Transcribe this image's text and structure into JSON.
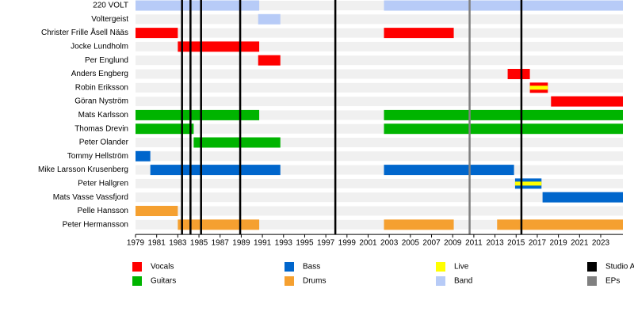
{
  "chart_data": {
    "type": "timeline",
    "xlim": [
      1979,
      2025.1
    ],
    "xticks": [
      1979,
      1981,
      1983,
      1985,
      1987,
      1989,
      1991,
      1993,
      1995,
      1997,
      1999,
      2001,
      2003,
      2005,
      2007,
      2009,
      2011,
      2013,
      2015,
      2017,
      2019,
      2021,
      2023
    ],
    "series": [
      {
        "name": "Vocals",
        "color": "#ff0000"
      },
      {
        "name": "Guitars",
        "color": "#00b400"
      },
      {
        "name": "Bass",
        "color": "#0066cc"
      },
      {
        "name": "Drums",
        "color": "#f5a030"
      },
      {
        "name": "Live",
        "color": "#ffff00"
      },
      {
        "name": "Band",
        "color": "#b7cbf7"
      },
      {
        "name": "Studio Albums",
        "color": "#000000"
      },
      {
        "name": "EPs",
        "color": "#808080"
      }
    ],
    "rows": [
      {
        "name": "220 VOLT",
        "bars": [
          {
            "role": "Band",
            "start": 1979,
            "end": 1990.7
          },
          {
            "role": "Band",
            "start": 2002.5,
            "end": 2025.1
          }
        ]
      },
      {
        "name": "Voltergeist",
        "bars": [
          {
            "role": "Band",
            "start": 1990.6,
            "end": 1992.7
          }
        ]
      },
      {
        "name": "Christer Frille Åsell Nääs",
        "bars": [
          {
            "role": "Vocals",
            "start": 1979,
            "end": 1983
          },
          {
            "role": "Vocals",
            "start": 2002.5,
            "end": 2009.1
          }
        ]
      },
      {
        "name": "Jocke Lundholm",
        "bars": [
          {
            "role": "Vocals",
            "start": 1983,
            "end": 1990.7
          }
        ]
      },
      {
        "name": "Per Englund",
        "bars": [
          {
            "role": "Vocals",
            "start": 1990.6,
            "end": 1992.7
          }
        ]
      },
      {
        "name": "Anders Engberg",
        "bars": [
          {
            "role": "Vocals",
            "start": 2014.2,
            "end": 2016.3
          }
        ]
      },
      {
        "name": "Robin Eriksson",
        "bars": [
          {
            "role": "Vocals",
            "overlay": "Live",
            "start": 2016.3,
            "end": 2018
          }
        ]
      },
      {
        "name": "Göran Nyström",
        "bars": [
          {
            "role": "Vocals",
            "start": 2018.3,
            "end": 2025.1
          }
        ]
      },
      {
        "name": "Mats Karlsson",
        "bars": [
          {
            "role": "Guitars",
            "start": 1979,
            "end": 1990.7
          },
          {
            "role": "Guitars",
            "start": 2002.5,
            "end": 2025.1
          }
        ]
      },
      {
        "name": "Thomas Drevin",
        "bars": [
          {
            "role": "Guitars",
            "start": 1979,
            "end": 1984.5
          },
          {
            "role": "Guitars",
            "start": 2002.5,
            "end": 2025.1
          }
        ]
      },
      {
        "name": "Peter Olander",
        "bars": [
          {
            "role": "Guitars",
            "start": 1984.5,
            "end": 1992.7
          }
        ]
      },
      {
        "name": "Tommy Hellström",
        "bars": [
          {
            "role": "Bass",
            "start": 1979,
            "end": 1980.4
          }
        ]
      },
      {
        "name": "Mike Larsson Krusenberg",
        "bars": [
          {
            "role": "Bass",
            "start": 1980.4,
            "end": 1992.7
          },
          {
            "role": "Bass",
            "start": 2002.5,
            "end": 2014.8
          }
        ]
      },
      {
        "name": "Peter Hallgren",
        "bars": [
          {
            "role": "Bass",
            "overlay": "Live",
            "start": 2014.9,
            "end": 2017.4
          }
        ]
      },
      {
        "name": "Mats Vasse Vassfjord",
        "bars": [
          {
            "role": "Bass",
            "start": 2017.5,
            "end": 2025.1
          }
        ]
      },
      {
        "name": "Pelle Hansson",
        "bars": [
          {
            "role": "Drums",
            "start": 1979,
            "end": 1983
          }
        ]
      },
      {
        "name": "Peter Hermansson",
        "bars": [
          {
            "role": "Drums",
            "start": 1983,
            "end": 1990.7
          },
          {
            "role": "Drums",
            "start": 2002.5,
            "end": 2009.1
          },
          {
            "role": "Drums",
            "start": 2013.2,
            "end": 2025.1
          }
        ]
      }
    ],
    "markers": [
      {
        "role": "Studio Albums",
        "x": 1983.4
      },
      {
        "role": "Studio Albums",
        "x": 1984.2
      },
      {
        "role": "Studio Albums",
        "x": 1985.2
      },
      {
        "role": "Studio Albums",
        "x": 1988.9
      },
      {
        "role": "Studio Albums",
        "x": 1997.9
      },
      {
        "role": "EPs",
        "x": 2010.6
      },
      {
        "role": "Studio Albums",
        "x": 2015.5
      }
    ]
  }
}
